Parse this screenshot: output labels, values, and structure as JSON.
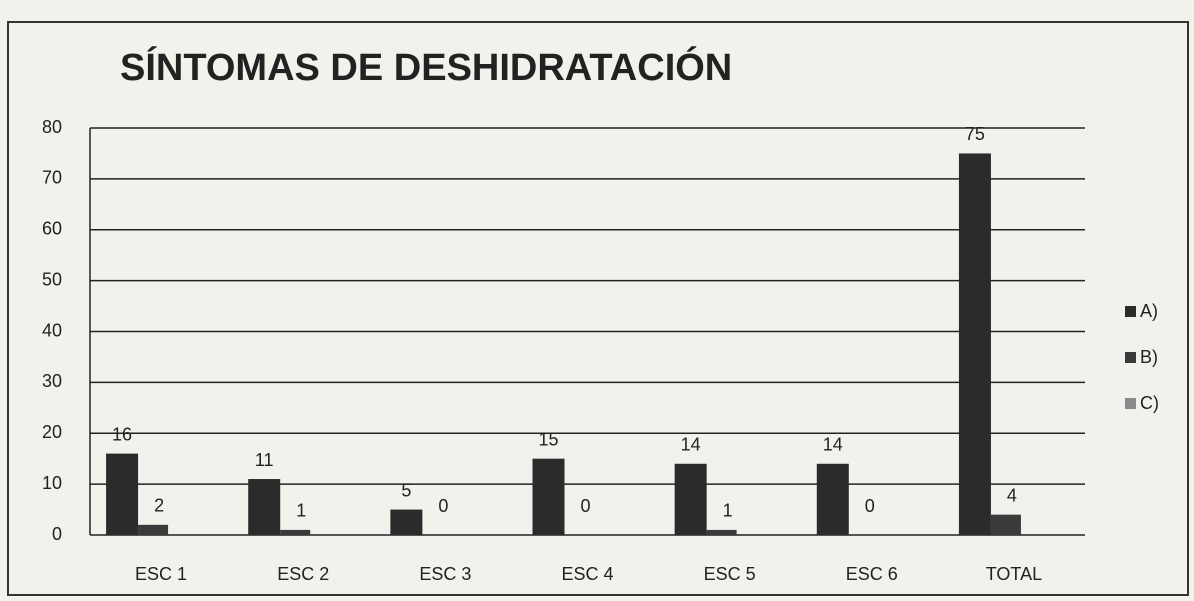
{
  "chart_data": {
    "type": "bar",
    "title": "SÍNTOMAS DE DESHIDRATACIÓN",
    "categories": [
      "ESC 1",
      "ESC 2",
      "ESC 3",
      "ESC 4",
      "ESC 5",
      "ESC 6",
      "TOTAL"
    ],
    "series": [
      {
        "name": "A)",
        "color": "#2b2b2b",
        "values": [
          16,
          11,
          5,
          15,
          14,
          14,
          75
        ],
        "data_labels": true
      },
      {
        "name": "B)",
        "color": "#3a3a3a",
        "values": [
          2,
          1,
          0,
          0,
          1,
          0,
          4
        ],
        "data_labels": true
      },
      {
        "name": "C)",
        "color": "#8a8a8a",
        "values": [
          0,
          0,
          0,
          0,
          0,
          0,
          0
        ],
        "data_labels": false
      }
    ],
    "ylim": [
      0,
      80
    ],
    "yticks": [
      0,
      10,
      20,
      30,
      40,
      50,
      60,
      70,
      80
    ],
    "grid": true,
    "legend": "right"
  }
}
